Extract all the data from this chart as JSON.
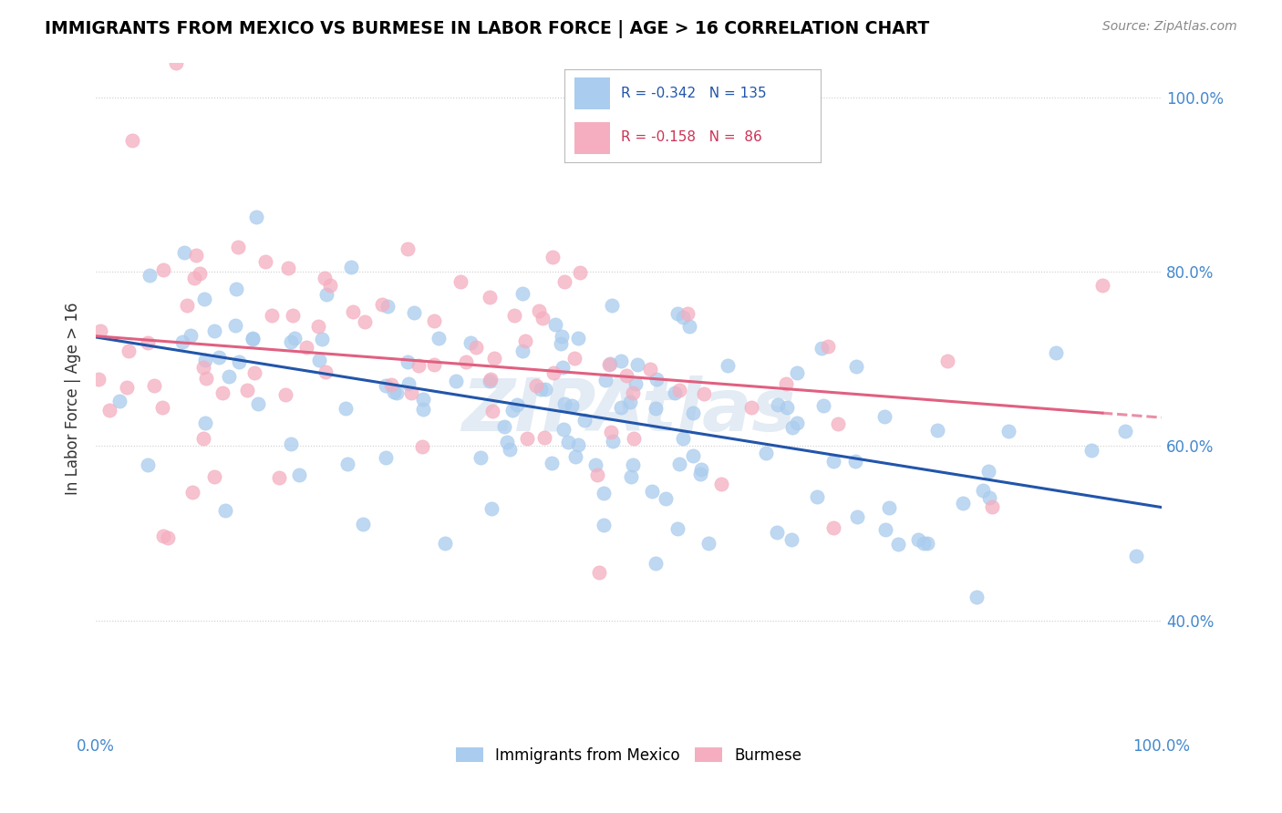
{
  "title": "IMMIGRANTS FROM MEXICO VS BURMESE IN LABOR FORCE | AGE > 16 CORRELATION CHART",
  "source": "Source: ZipAtlas.com",
  "ylabel": "In Labor Force | Age > 16",
  "legend_label_1": "Immigrants from Mexico",
  "legend_label_2": "Burmese",
  "R1": "-0.342",
  "N1": "135",
  "R2": "-0.158",
  "N2": "86",
  "color_blue": "#aaccee",
  "color_pink": "#f5aec0",
  "line_color_blue": "#2255aa",
  "line_color_pink": "#e06080",
  "watermark": "ZIPAtlas",
  "x_min": 0.0,
  "x_max": 1.0,
  "y_min": 0.27,
  "y_max": 1.04,
  "seed_blue": 12,
  "seed_pink": 25,
  "n_blue": 135,
  "n_pink": 86,
  "blue_intercept": 0.72,
  "blue_slope": -0.18,
  "pink_intercept": 0.73,
  "pink_slope": -0.12,
  "blue_noise": 0.075,
  "pink_noise": 0.09
}
